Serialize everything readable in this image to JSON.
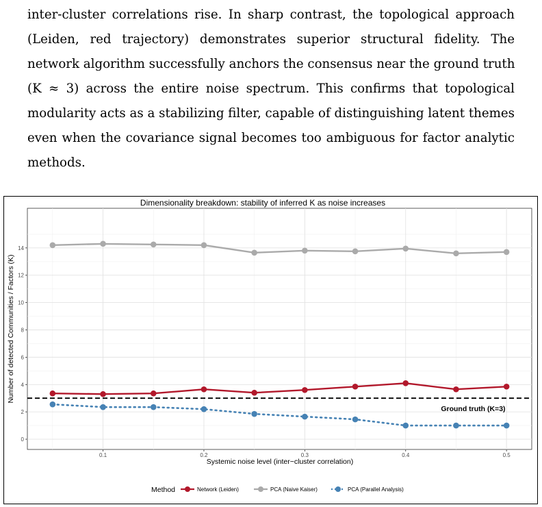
{
  "paragraph": {
    "lines": [
      "inter-cluster correlations rise. In sharp contrast, the topological approach",
      "(Leiden, red trajectory) demonstrates superior structural fidelity.   The",
      "network algorithm successfully anchors the consensus near the ground truth",
      "(K ≈ 3) across the entire noise spectrum. This confirms that topological",
      "modularity acts as a stabilizing filter, capable of distinguishing latent themes",
      "even when the covariance signal becomes too ambiguous for factor analytic",
      "methods."
    ]
  },
  "chart_data": {
    "type": "line",
    "title": "Dimensionality breakdown: stability of inferred K as noise increases",
    "xlabel": "Systemic noise level (inter−cluster correlation)",
    "ylabel": "Number of detected Communities / Factors (K)",
    "xlim": [
      0.025,
      0.525
    ],
    "ylim": [
      -0.75,
      16.9
    ],
    "x_ticks": [
      0.1,
      0.2,
      0.3,
      0.4,
      0.5
    ],
    "x_tick_labels": [
      "0.1",
      "0.2",
      "0.3",
      "0.4",
      "0.5"
    ],
    "y_ticks": [
      0,
      2,
      4,
      6,
      8,
      10,
      12,
      14
    ],
    "y_tick_labels": [
      "0",
      "2",
      "4",
      "6",
      "8",
      "10",
      "12",
      "14"
    ],
    "grid": true,
    "legend_position": "bottom",
    "legend_title": "Method",
    "x": [
      0.05,
      0.1,
      0.15,
      0.2,
      0.25,
      0.3,
      0.35,
      0.4,
      0.45,
      0.5
    ],
    "series": [
      {
        "name": "Network (Leiden)",
        "color": "#B2182B",
        "line_style": "solid",
        "values": [
          3.35,
          3.3,
          3.35,
          3.65,
          3.4,
          3.6,
          3.85,
          4.1,
          3.65,
          3.85
        ]
      },
      {
        "name": "PCA (Naive Kaiser)",
        "color": "#AAAAAA",
        "line_style": "solid",
        "values": [
          14.2,
          14.3,
          14.25,
          14.2,
          13.65,
          13.8,
          13.75,
          13.95,
          13.6,
          13.7
        ]
      },
      {
        "name": "PCA (Parallel Analysis)",
        "color": "#4682B4",
        "line_style": "dotted",
        "values": [
          2.55,
          2.35,
          2.35,
          2.2,
          1.85,
          1.65,
          1.45,
          1.0,
          1.0,
          1.0
        ]
      }
    ],
    "reference_line": {
      "y": 3,
      "style": "dashed",
      "color": "#000000"
    },
    "annotation": {
      "text": "Ground truth (K=3)",
      "x": 0.435,
      "y": 2.2
    }
  }
}
